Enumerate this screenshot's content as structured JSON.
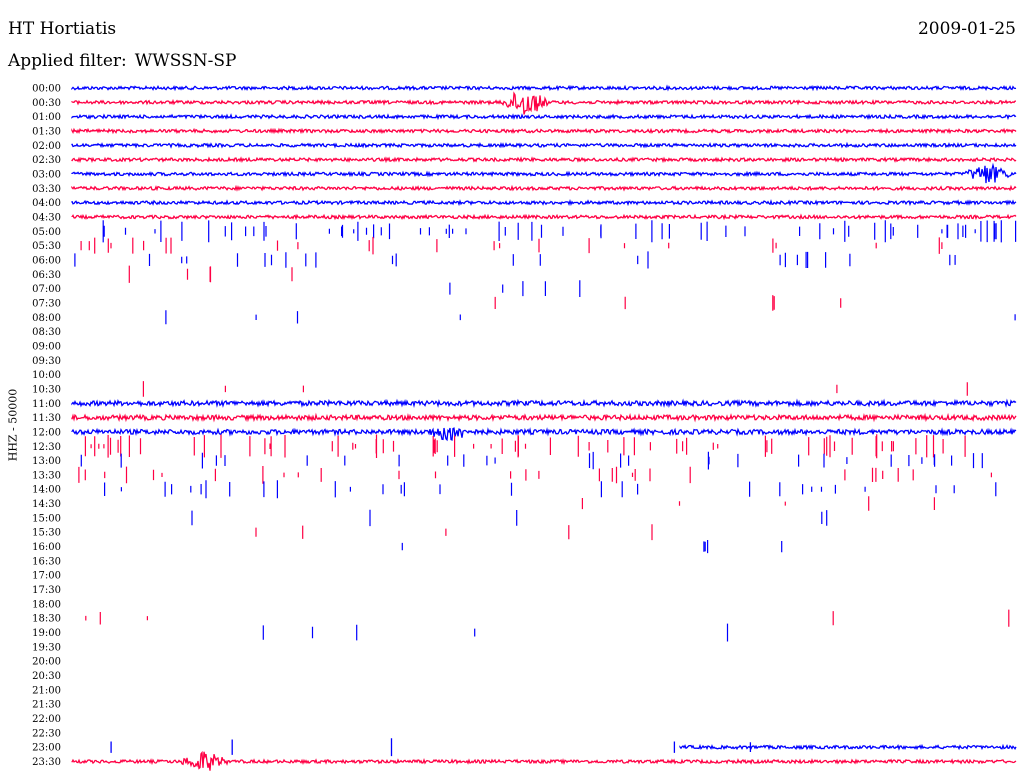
{
  "header": {
    "station": "HT Hortiatis",
    "date": "2009-01-25",
    "filter_label": "Applied filter:",
    "filter_value": "WWSSN-SP"
  },
  "colors": {
    "series_a": "#0000ff",
    "series_b": "#ff0044",
    "text": "#000000"
  },
  "chart_data": {
    "type": "helicorder",
    "ylabel": "HHZ - 50000",
    "row_labels": [
      "00:00",
      "00:30",
      "01:00",
      "01:30",
      "02:00",
      "02:30",
      "03:00",
      "03:30",
      "04:00",
      "04:30",
      "05:00",
      "05:30",
      "06:00",
      "06:30",
      "07:00",
      "07:30",
      "08:00",
      "08:30",
      "09:00",
      "09:30",
      "10:00",
      "10:30",
      "11:00",
      "11:30",
      "12:00",
      "12:30",
      "13:00",
      "13:30",
      "14:00",
      "14:30",
      "15:00",
      "15:30",
      "16:00",
      "16:30",
      "17:00",
      "17:30",
      "18:00",
      "18:30",
      "19:00",
      "19:30",
      "20:00",
      "20:30",
      "21:00",
      "21:30",
      "22:00",
      "22:30",
      "23:00",
      "23:30"
    ],
    "row_colors": [
      "blue",
      "red",
      "blue",
      "red",
      "blue",
      "red",
      "blue",
      "red",
      "blue",
      "red",
      "blue",
      "red",
      "blue",
      "red",
      "blue",
      "red",
      "blue",
      "red",
      "blue",
      "red",
      "blue",
      "red",
      "blue",
      "red",
      "blue",
      "red",
      "blue",
      "red",
      "blue",
      "red",
      "blue",
      "red",
      "blue",
      "red",
      "blue",
      "red",
      "blue",
      "red",
      "blue",
      "red",
      "blue",
      "red",
      "blue",
      "red",
      "blue",
      "red",
      "blue",
      "red"
    ],
    "continuous_rows": [
      0,
      1,
      2,
      3,
      4,
      5,
      6,
      7,
      8,
      9,
      22,
      23,
      24,
      46,
      47
    ],
    "spiky_rows": [
      10,
      11,
      12,
      13,
      14,
      15,
      16,
      21,
      25,
      26,
      27,
      28,
      29,
      30,
      31,
      32,
      37,
      38,
      46
    ],
    "events": [
      {
        "row": 1,
        "t": 0.48,
        "amp": 14
      },
      {
        "row": 6,
        "t": 0.97,
        "amp": 10
      },
      {
        "row": 24,
        "t": 0.4,
        "amp": 8
      },
      {
        "row": 47,
        "t": 0.14,
        "amp": 10
      }
    ]
  }
}
